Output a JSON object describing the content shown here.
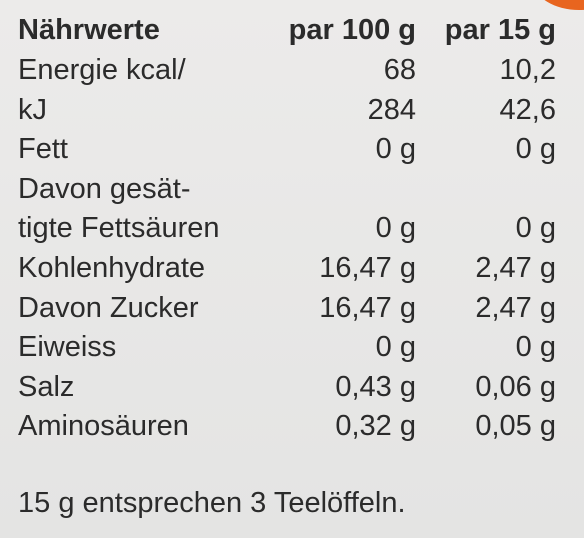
{
  "table": {
    "header": [
      "Nährwerte",
      "par 100 g",
      "par 15 g"
    ],
    "rows": [
      {
        "label": [
          "Energie kcal/"
        ],
        "per100": "68",
        "per15": "10,2"
      },
      {
        "label": [
          "kJ"
        ],
        "per100": "284",
        "per15": "42,6"
      },
      {
        "label": [
          "Fett"
        ],
        "per100": "0 g",
        "per15": "0 g"
      },
      {
        "label": [
          "Davon gesät-",
          "tigte Fettsäuren"
        ],
        "per100": "0 g",
        "per15": "0 g"
      },
      {
        "label": [
          "Kohlenhydrate"
        ],
        "per100": "16,47 g",
        "per15": "2,47 g"
      },
      {
        "label": [
          "Davon Zucker"
        ],
        "per100": "16,47 g",
        "per15": "2,47 g"
      },
      {
        "label": [
          "Eiweiss"
        ],
        "per100": "0 g",
        "per15": "0 g"
      },
      {
        "label": [
          "Salz"
        ],
        "per100": "0,43 g",
        "per15": "0,06 g"
      },
      {
        "label": [
          "Aminosäuren"
        ],
        "per100": "0,32 g",
        "per15": "0,05 g"
      }
    ]
  },
  "footnote": "15 g entsprechen 3 Teelöffeln."
}
